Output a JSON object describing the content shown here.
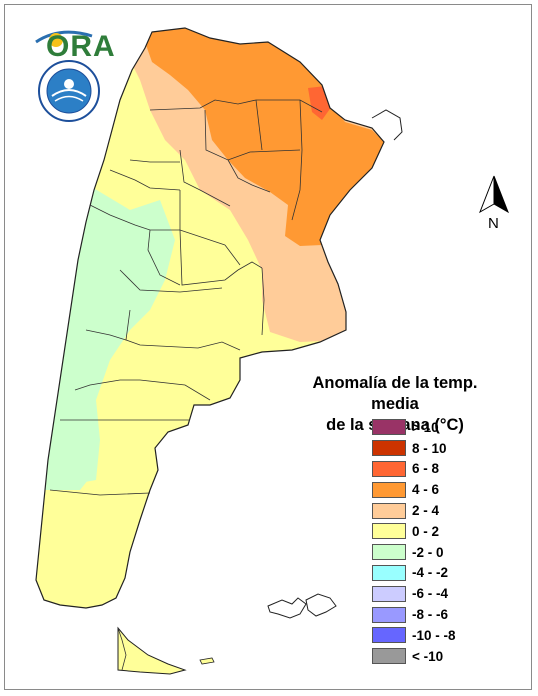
{
  "logo": {
    "text": "ORA",
    "icon": "sun-swoosh-logo"
  },
  "seal": {
    "icon": "smn-seal-logo",
    "text": "SERVICIO METEOROLOGICO NACIONAL · ARGENTINA"
  },
  "north_arrow": {
    "label": "N",
    "icon": "north-arrow-icon"
  },
  "legend": {
    "title_line1": "Anomalía de la temp. media",
    "title_line2": "de la semana (°C)",
    "items": [
      {
        "label": "> 10",
        "color": "#993366"
      },
      {
        "label": "8 - 10",
        "color": "#cc3300"
      },
      {
        "label": "6 - 8",
        "color": "#ff6633"
      },
      {
        "label": "4 - 6",
        "color": "#ff9933"
      },
      {
        "label": "2 - 4",
        "color": "#ffcc99"
      },
      {
        "label": "0 - 2",
        "color": "#ffff99"
      },
      {
        "label": "-2 - 0",
        "color": "#ccffcc"
      },
      {
        "label": "-4 - -2",
        "color": "#99ffff"
      },
      {
        "label": "-6 - -4",
        "color": "#ccccff"
      },
      {
        "label": "-8 - -6",
        "color": "#9999ff"
      },
      {
        "label": "-10 - -8",
        "color": "#6666ff"
      },
      {
        "label": "< -10",
        "color": "#999999"
      }
    ]
  }
}
